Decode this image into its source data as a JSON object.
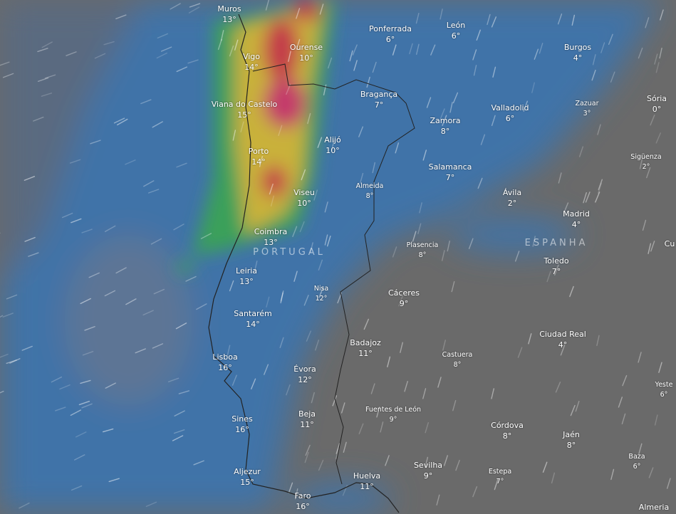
{
  "map": {
    "countries": [
      "PORTUGAL",
      "ESPANHA"
    ],
    "colors": {
      "land": "#6a6a6a",
      "ocean_wind": "#3f73a8",
      "rain_low": "#3aa05a",
      "rain_mid": "#c9b13a",
      "rain_high": "#c43a4a"
    },
    "cities": [
      {
        "name": "Muros",
        "temp": "13°"
      },
      {
        "name": "Vigo",
        "temp": "14°"
      },
      {
        "name": "Ourense",
        "temp": "10°"
      },
      {
        "name": "Ponferrada",
        "temp": "6°"
      },
      {
        "name": "León",
        "temp": "6°"
      },
      {
        "name": "Burgos",
        "temp": "4°"
      },
      {
        "name": "Viana do Castelo",
        "temp": "15°"
      },
      {
        "name": "Bragança",
        "temp": "7°"
      },
      {
        "name": "Valladolid",
        "temp": "6°"
      },
      {
        "name": "Zazuar",
        "temp": "3°"
      },
      {
        "name": "Sória",
        "temp": "0°"
      },
      {
        "name": "Zamora",
        "temp": "8°"
      },
      {
        "name": "Porto",
        "temp": "14°"
      },
      {
        "name": "Alijó",
        "temp": "10°"
      },
      {
        "name": "Salamanca",
        "temp": "7°"
      },
      {
        "name": "Sigüenza",
        "temp": "2°"
      },
      {
        "name": "Almeida",
        "temp": "8°"
      },
      {
        "name": "Viseu",
        "temp": "10°"
      },
      {
        "name": "Ávila",
        "temp": "2°"
      },
      {
        "name": "Madrid",
        "temp": "4°"
      },
      {
        "name": "Coimbra",
        "temp": "13°"
      },
      {
        "name": "Plasencia",
        "temp": "8°"
      },
      {
        "name": "Toledo",
        "temp": "7°"
      },
      {
        "name": "Leiria",
        "temp": "13°"
      },
      {
        "name": "Nisa",
        "temp": "12°"
      },
      {
        "name": "Cáceres",
        "temp": "9°"
      },
      {
        "name": "Santarém",
        "temp": "14°"
      },
      {
        "name": "Badajoz",
        "temp": "11°"
      },
      {
        "name": "Ciudad Real",
        "temp": "4°"
      },
      {
        "name": "Castuera",
        "temp": "8°"
      },
      {
        "name": "Lisboa",
        "temp": "16°"
      },
      {
        "name": "Évora",
        "temp": "12°"
      },
      {
        "name": "Beja",
        "temp": "11°"
      },
      {
        "name": "Fuentes de León",
        "temp": "9°"
      },
      {
        "name": "Sines",
        "temp": "16°"
      },
      {
        "name": "Córdova",
        "temp": "8°"
      },
      {
        "name": "Jaén",
        "temp": "8°"
      },
      {
        "name": "Yeste",
        "temp": "6°"
      },
      {
        "name": "Baza",
        "temp": "6°"
      },
      {
        "name": "Aljezur",
        "temp": "15°"
      },
      {
        "name": "Sevilha",
        "temp": "9°"
      },
      {
        "name": "Huelva",
        "temp": "11°"
      },
      {
        "name": "Estepa",
        "temp": "7°"
      },
      {
        "name": "Faro",
        "temp": "16°"
      },
      {
        "name": "Almeria",
        "temp": ""
      },
      {
        "name": "Cu",
        "temp": ""
      }
    ]
  }
}
